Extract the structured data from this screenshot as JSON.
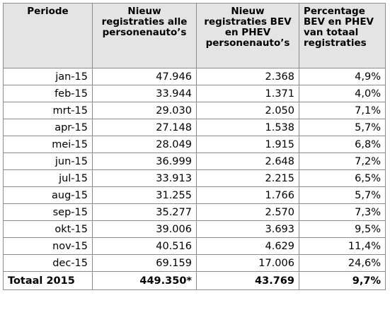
{
  "table": {
    "headers": [
      "Periode",
      "Nieuw registraties alle personenauto’s",
      "Nieuw registraties BEV en PHEV personenauto’s",
      "Percentage BEV en PHEV van totaal registraties"
    ],
    "rows": [
      {
        "periode": "jan-15",
        "alle": "47.946",
        "bev_phev": "2.368",
        "percentage": "4,9%"
      },
      {
        "periode": "feb-15",
        "alle": "33.944",
        "bev_phev": "1.371",
        "percentage": "4,0%"
      },
      {
        "periode": "mrt-15",
        "alle": "29.030",
        "bev_phev": "2.050",
        "percentage": "7,1%"
      },
      {
        "periode": "apr-15",
        "alle": "27.148",
        "bev_phev": "1.538",
        "percentage": "5,7%"
      },
      {
        "periode": "mei-15",
        "alle": "28.049",
        "bev_phev": "1.915",
        "percentage": "6,8%"
      },
      {
        "periode": "jun-15",
        "alle": "36.999",
        "bev_phev": "2.648",
        "percentage": "7,2%"
      },
      {
        "periode": "jul-15",
        "alle": "33.913",
        "bev_phev": "2.215",
        "percentage": "6,5%"
      },
      {
        "periode": "aug-15",
        "alle": "31.255",
        "bev_phev": "1.766",
        "percentage": "5,7%"
      },
      {
        "periode": "sep-15",
        "alle": "35.277",
        "bev_phev": "2.570",
        "percentage": "7,3%"
      },
      {
        "periode": "okt-15",
        "alle": "39.006",
        "bev_phev": "3.693",
        "percentage": "9,5%"
      },
      {
        "periode": "nov-15",
        "alle": "40.516",
        "bev_phev": "4.629",
        "percentage": "11,4%"
      },
      {
        "periode": "dec-15",
        "alle": "69.159",
        "bev_phev": "17.006",
        "percentage": "24,6%"
      }
    ],
    "total": {
      "label": "Totaal 2015",
      "alle": "449.350*",
      "bev_phev": "43.769",
      "percentage": "9,7%"
    }
  },
  "colors": {
    "header_background": "#e4e4e4",
    "border": "#8c8c8c"
  }
}
